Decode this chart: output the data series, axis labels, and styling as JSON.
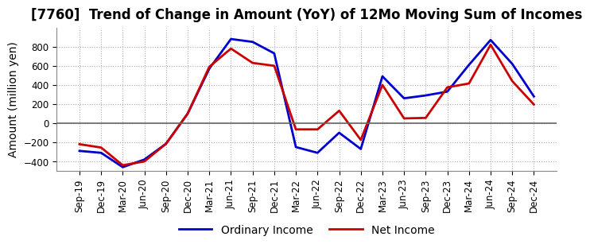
{
  "title": "[7760]  Trend of Change in Amount (YoY) of 12Mo Moving Sum of Incomes",
  "ylabel": "Amount (million yen)",
  "x_labels": [
    "Sep-19",
    "Dec-19",
    "Mar-20",
    "Jun-20",
    "Sep-20",
    "Dec-20",
    "Mar-21",
    "Jun-21",
    "Sep-21",
    "Dec-21",
    "Mar-22",
    "Jun-22",
    "Sep-22",
    "Dec-22",
    "Mar-23",
    "Jun-23",
    "Sep-23",
    "Dec-23",
    "Mar-24",
    "Jun-24",
    "Sep-24",
    "Dec-24"
  ],
  "ordinary_income": [
    -290,
    -310,
    -460,
    -380,
    -215,
    100,
    570,
    880,
    850,
    730,
    -250,
    -310,
    -100,
    -270,
    490,
    260,
    290,
    330,
    610,
    870,
    620,
    280
  ],
  "net_income": [
    -220,
    -255,
    -440,
    -400,
    -215,
    100,
    590,
    780,
    630,
    600,
    -65,
    -65,
    130,
    -175,
    400,
    50,
    55,
    375,
    415,
    820,
    440,
    195
  ],
  "ordinary_color": "#0000cc",
  "net_color": "#cc0000",
  "bg_color": "#ffffff",
  "grid_color": "#aaaaaa",
  "ylim": [
    -500,
    1000
  ],
  "yticks": [
    -400,
    -200,
    0,
    200,
    400,
    600,
    800
  ],
  "legend_labels": [
    "Ordinary Income",
    "Net Income"
  ],
  "line_width": 2.0,
  "title_fontsize": 12,
  "axis_fontsize": 10,
  "tick_fontsize": 8.5
}
